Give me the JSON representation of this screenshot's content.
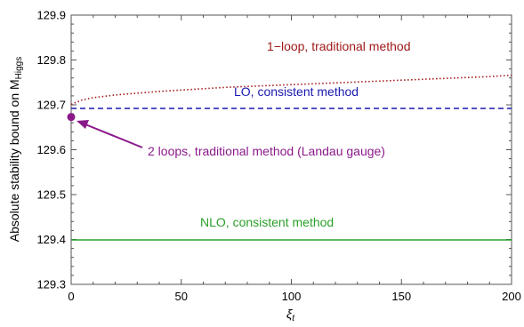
{
  "chart_data": {
    "type": "line",
    "x_range": [
      0,
      200
    ],
    "y_range": [
      129.3,
      129.9
    ],
    "x_ticks": [
      "0",
      "50",
      "100",
      "150",
      "200"
    ],
    "y_ticks": [
      "129.3",
      "129.4",
      "129.5",
      "129.6",
      "129.7",
      "129.8",
      "129.9"
    ],
    "xlabel": "ξ",
    "xlabel_sub": "t",
    "ylabel": "Absolute stability bound on M",
    "ylabel_sub": "Higgs",
    "grid": false,
    "series": [
      {
        "name": "1-loop, traditional method",
        "color": "#a01a1a",
        "style": "dotted",
        "x": [
          0,
          5,
          10,
          20,
          30,
          40,
          50,
          60,
          70,
          80,
          90,
          100,
          110,
          120,
          130,
          140,
          150,
          160,
          170,
          180,
          190,
          200
        ],
        "y": [
          129.701,
          129.711,
          129.716,
          129.722,
          129.726,
          129.73,
          129.733,
          129.736,
          129.739,
          129.741,
          129.743,
          129.745,
          129.747,
          129.749,
          129.751,
          129.753,
          129.755,
          129.757,
          129.759,
          129.761,
          129.763,
          129.766
        ]
      },
      {
        "name": "LO, consistent method",
        "color": "#1a1ab0",
        "style": "dashed",
        "x": [
          0,
          200
        ],
        "y": [
          129.692,
          129.692
        ]
      },
      {
        "name": "NLO,  consistent method",
        "color": "#2aa02a",
        "style": "solid",
        "x": [
          0,
          200
        ],
        "y": [
          129.399,
          129.399
        ]
      },
      {
        "name": "2 loops, traditional method (Landau gauge)",
        "color": "#8a1a8a",
        "style": "point",
        "x": [
          0
        ],
        "y": [
          129.673
        ]
      }
    ],
    "annotations": [
      {
        "text": "1−loop, traditional method",
        "color": "#a01a1a"
      },
      {
        "text": "LO, consistent method",
        "color": "#1a1ab0"
      },
      {
        "text": "2 loops, traditional method (Landau gauge)",
        "color": "#8a1a8a"
      },
      {
        "text": "NLO,  consistent method",
        "color": "#2aa02a"
      }
    ]
  }
}
